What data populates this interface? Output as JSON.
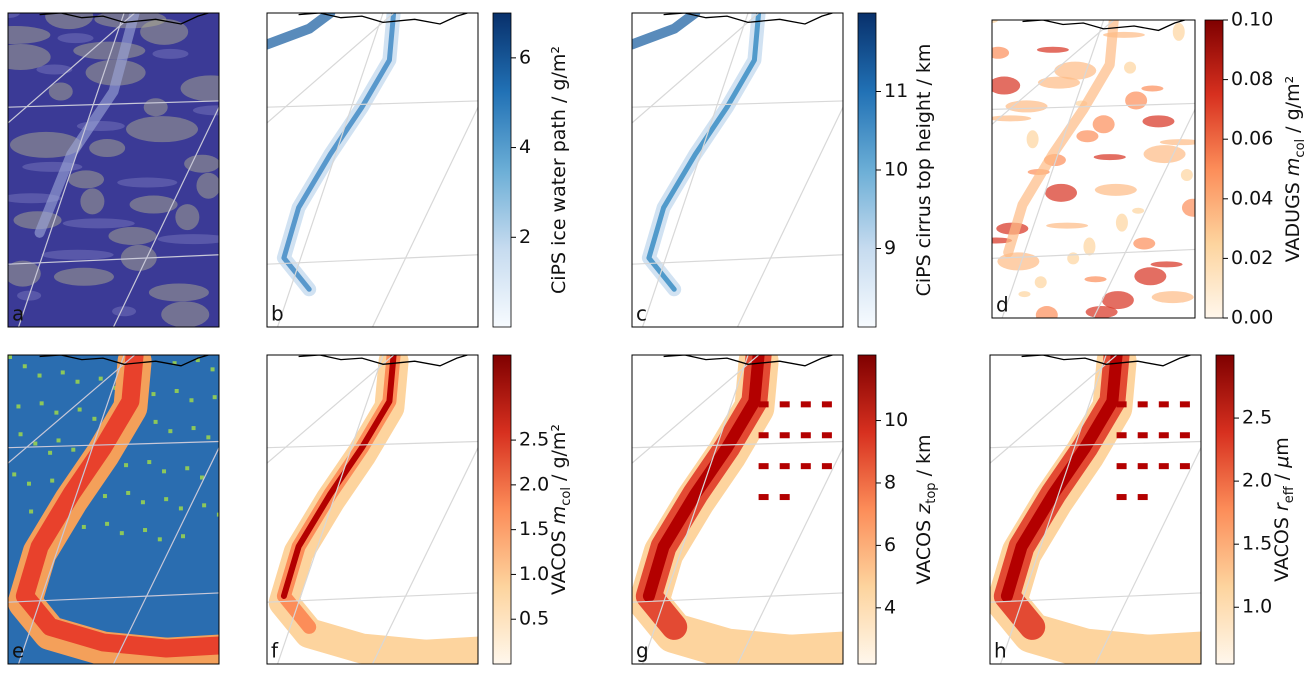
{
  "chart_data": [
    {
      "type": "map",
      "panel": "a"
    },
    {
      "type": "map",
      "panel": "b",
      "colorbar": {
        "label_parts": [
          {
            "text": "CiPS ice water path / g/m²"
          }
        ],
        "lim": [
          0,
          7
        ],
        "ticks": [
          2,
          4,
          6
        ],
        "colors": [
          "#f7fbff",
          "#c6dbef",
          "#6baed6",
          "#2171b5",
          "#08306b"
        ]
      }
    },
    {
      "type": "map",
      "panel": "c",
      "colorbar": {
        "label_parts": [
          {
            "text": "CiPS cirrus top height / km"
          }
        ],
        "lim": [
          8.0,
          12.0
        ],
        "ticks": [
          9,
          10,
          11
        ],
        "colors": [
          "#f7fbff",
          "#c6dbef",
          "#6baed6",
          "#2171b5",
          "#08306b"
        ]
      }
    },
    {
      "type": "map",
      "panel": "d",
      "colorbar": {
        "label_parts": [
          {
            "text": "VADUGS "
          },
          {
            "text": "m",
            "italic": true
          },
          {
            "text": "col",
            "sub": true
          },
          {
            "text": " / g/m²"
          }
        ],
        "lim": [
          0,
          0.1
        ],
        "ticks": [
          {
            "value": 0,
            "label": "0.00"
          },
          {
            "value": 0.02,
            "label": "0.02"
          },
          {
            "value": 0.04,
            "label": "0.04"
          },
          {
            "value": 0.06,
            "label": "0.06"
          },
          {
            "value": 0.08,
            "label": "0.08"
          },
          {
            "value": 0.1,
            "label": "0.10"
          }
        ],
        "colors": [
          "#fff7ec",
          "#fdd49e",
          "#fc8d59",
          "#d7301f",
          "#7f0000"
        ]
      }
    },
    {
      "type": "map",
      "panel": "e"
    },
    {
      "type": "map",
      "panel": "f",
      "colorbar": {
        "label_parts": [
          {
            "text": "VACOS "
          },
          {
            "text": "m",
            "italic": true
          },
          {
            "text": "col",
            "sub": true
          },
          {
            "text": " / g/m²"
          }
        ],
        "lim": [
          0,
          3.45
        ],
        "ticks": [
          0.5,
          {
            "value": 1,
            "label": "1.0"
          },
          1.5,
          {
            "value": 2,
            "label": "2.0"
          },
          2.5
        ],
        "colors": [
          "#fff7ec",
          "#fdd49e",
          "#fc8d59",
          "#d7301f",
          "#7f0000"
        ]
      }
    },
    {
      "type": "map",
      "panel": "g",
      "colorbar": {
        "label_parts": [
          {
            "text": "VACOS "
          },
          {
            "text": "z",
            "italic": true
          },
          {
            "text": "top",
            "sub": true
          },
          {
            "text": " / km"
          }
        ],
        "lim": [
          2.2,
          12.1
        ],
        "ticks": [
          4,
          6,
          8,
          10
        ],
        "colors": [
          "#fff7ec",
          "#fdd49e",
          "#fc8d59",
          "#d7301f",
          "#7f0000"
        ]
      }
    },
    {
      "type": "map",
      "panel": "h",
      "colorbar": {
        "label_parts": [
          {
            "text": "VACOS "
          },
          {
            "text": "r",
            "italic": true
          },
          {
            "text": "eff",
            "sub": true
          },
          {
            "text": " / "
          },
          {
            "text": "μ",
            "italic": true
          },
          {
            "text": "m"
          }
        ],
        "lim": [
          0.55,
          3.0
        ],
        "ticks": [
          {
            "value": 1,
            "label": "1.0"
          },
          1.5,
          {
            "value": 2,
            "label": "2.0"
          },
          2.5
        ],
        "colors": [
          "#fff7ec",
          "#fdd49e",
          "#fc8d59",
          "#d7301f",
          "#7f0000"
        ]
      }
    }
  ]
}
